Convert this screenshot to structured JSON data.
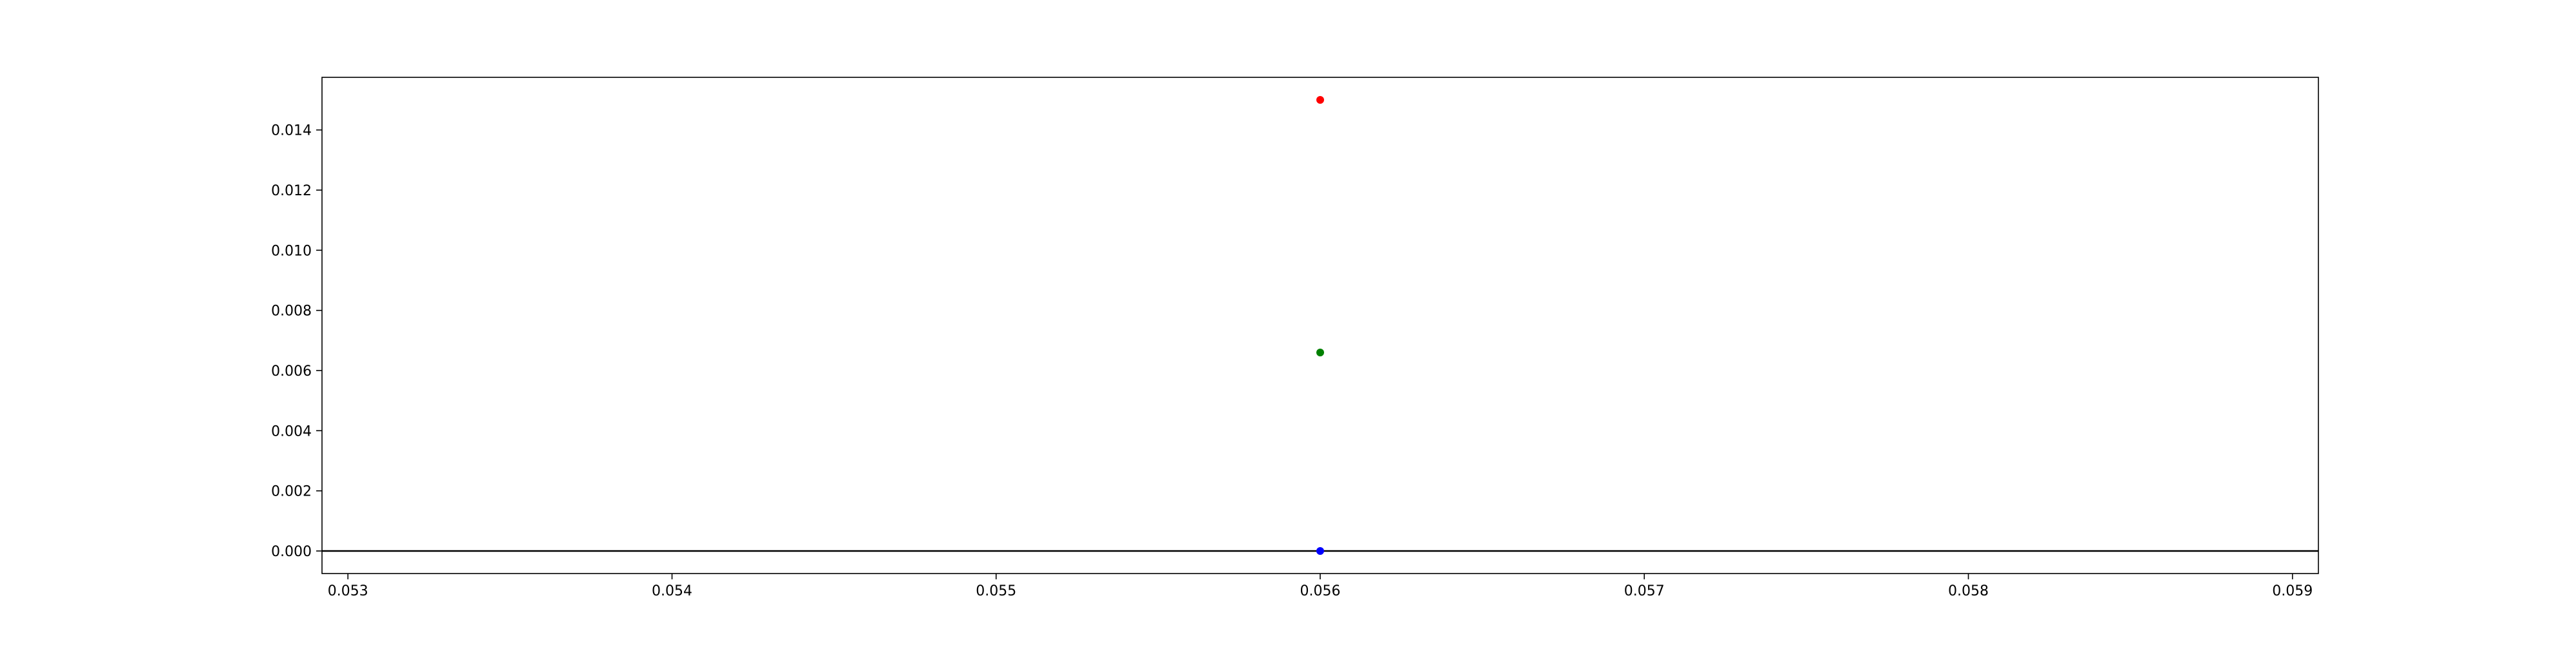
{
  "chart_data": {
    "type": "scatter",
    "title": "",
    "xlabel": "",
    "ylabel": "",
    "xlim": [
      0.05292,
      0.05908
    ],
    "ylim": [
      -0.00075,
      0.01575
    ],
    "grid": false,
    "xticks": [
      0.053,
      0.054,
      0.055,
      0.056,
      0.057,
      0.058,
      0.059
    ],
    "xtick_labels": [
      "0.053",
      "0.054",
      "0.055",
      "0.056",
      "0.057",
      "0.058",
      "0.059"
    ],
    "yticks": [
      0.0,
      0.002,
      0.004,
      0.006,
      0.008,
      0.01,
      0.012,
      0.014
    ],
    "ytick_labels": [
      "0.000",
      "0.002",
      "0.004",
      "0.006",
      "0.008",
      "0.010",
      "0.012",
      "0.014"
    ],
    "hlines": [
      {
        "y": 0.0,
        "color": "#000000"
      }
    ],
    "series": [
      {
        "color": "#ff0000",
        "points": [
          {
            "x": 0.056,
            "y": 0.015
          }
        ]
      },
      {
        "color": "#008000",
        "points": [
          {
            "x": 0.056,
            "y": 0.0066
          }
        ]
      },
      {
        "color": "#0000ff",
        "points": [
          {
            "x": 0.056,
            "y": 0.0
          }
        ]
      }
    ]
  }
}
